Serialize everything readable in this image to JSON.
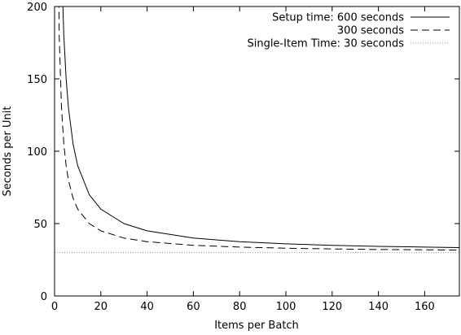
{
  "chart_data": {
    "type": "line",
    "xlabel": "Items per Batch",
    "ylabel": "Seconds per Unit",
    "xlim": [
      0,
      175
    ],
    "ylim": [
      0,
      200
    ],
    "xticks": [
      0,
      20,
      40,
      60,
      80,
      100,
      120,
      140,
      160
    ],
    "yticks": [
      0,
      50,
      100,
      150,
      200
    ],
    "grid": false,
    "legend_position": "top-right",
    "series": [
      {
        "name": "Setup time: 600 seconds",
        "style": "solid",
        "color": "#000000",
        "x": [
          3,
          4,
          5,
          6,
          8,
          10,
          15,
          20,
          30,
          40,
          60,
          80,
          100,
          120,
          140,
          160,
          175
        ],
        "y": [
          230,
          180,
          150,
          130,
          105,
          90,
          70,
          60,
          50,
          45,
          40,
          37.5,
          36,
          35,
          34.3,
          33.8,
          33.4
        ]
      },
      {
        "name": "300 seconds",
        "style": "dashed",
        "color": "#000000",
        "x": [
          1,
          2,
          3,
          4,
          5,
          6,
          8,
          10,
          15,
          20,
          30,
          40,
          60,
          80,
          100,
          120,
          140,
          160,
          175
        ],
        "y": [
          330,
          180,
          130,
          105,
          90,
          80,
          67.5,
          60,
          50,
          45,
          40,
          37.5,
          35,
          33.8,
          33,
          32.5,
          32.1,
          31.9,
          31.7
        ]
      },
      {
        "name": "Single-Item Time: 30 seconds",
        "style": "dotted",
        "color": "#999999",
        "x": [
          0,
          175
        ],
        "y": [
          30,
          30
        ]
      }
    ]
  }
}
